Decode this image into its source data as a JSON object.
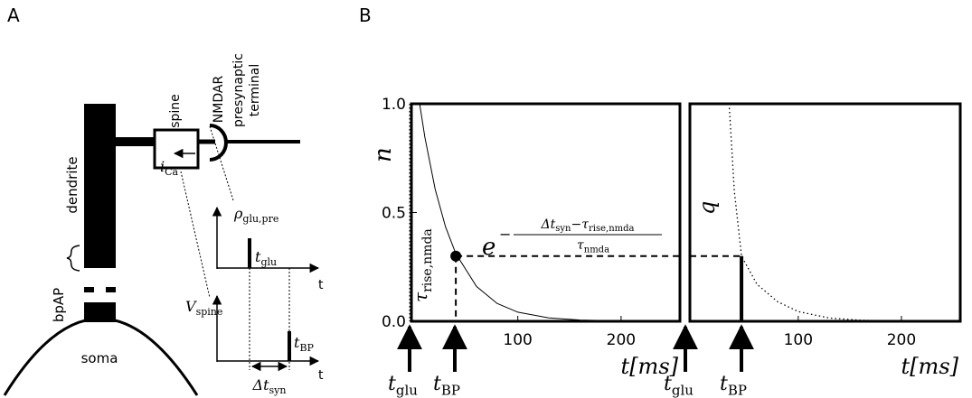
{
  "panel_a": {
    "label": "A",
    "dendrite": "dendrite",
    "spine": "spine",
    "nmdar": "NMDAR",
    "presynaptic": [
      "presynaptic",
      "terminal"
    ],
    "bpap": "bpAP",
    "soma": "soma",
    "i_ca": {
      "base": "i",
      "sub": "Ca"
    },
    "rho": {
      "base": "ρ",
      "sub": "glu,pre"
    },
    "t_glu": {
      "base": "t",
      "sub": "glu"
    },
    "v_spine": {
      "base": "V",
      "sub": "spine"
    },
    "t_bp": {
      "base": "t",
      "sub": "BP"
    },
    "delta_t_syn": {
      "base": "Δt",
      "sub": "syn"
    },
    "time_axis_labels": [
      "t",
      "t"
    ]
  },
  "panel_b": {
    "label": "B",
    "plots": [
      {
        "ylabel": "n",
        "xlabel": "t[ms]",
        "xlim": [
          -3,
          257
        ],
        "ylim": [
          0,
          1
        ],
        "xticks": [
          100,
          200
        ],
        "yticks": [
          {
            "value": 0,
            "label": "0.0"
          },
          {
            "value": 0.5,
            "label": "0.5"
          },
          {
            "value": 1,
            "label": "1.0"
          }
        ],
        "line_style": "solid",
        "curve": {
          "x": [
            5,
            10,
            20,
            30,
            40,
            60,
            80,
            100,
            130,
            160,
            200,
            250
          ],
          "y": [
            1,
            0.846,
            0.607,
            0.435,
            0.311,
            0.16,
            0.082,
            0.042,
            0.0155,
            0.0057,
            0.0015,
            0.0003
          ]
        },
        "marker": {
          "x": 40,
          "y": 0.3
        },
        "tau_label": {
          "base": "τ",
          "sub": "rise,nmda"
        },
        "formula": {
          "base": "e",
          "sign": "−",
          "numerator": [
            {
              "base": "Δt",
              "sub": "syn"
            },
            {
              "base": "−τ",
              "sub": "rise,nmda"
            }
          ],
          "denominator": {
            "base": "τ",
            "sub": "nmda"
          }
        }
      },
      {
        "ylabel": "q",
        "xlabel": "t[ms]",
        "xlim": [
          -5,
          257
        ],
        "ylim": [
          0,
          1
        ],
        "xticks": [
          100,
          200
        ],
        "line_style": "dotted",
        "curve": {
          "x": [
            33,
            38,
            45,
            60,
            80,
            100,
            130,
            160,
            200,
            250
          ],
          "y": [
            1,
            0.6,
            0.3,
            0.17,
            0.09,
            0.045,
            0.015,
            0.005,
            0.001,
            0
          ]
        },
        "bar": {
          "x": 45,
          "y": 0.3
        }
      }
    ],
    "arrows": [
      {
        "base": "t",
        "sub": "glu"
      },
      {
        "base": "t",
        "sub": "BP"
      },
      {
        "base": "t",
        "sub": "glu"
      },
      {
        "base": "t",
        "sub": "BP"
      }
    ]
  }
}
